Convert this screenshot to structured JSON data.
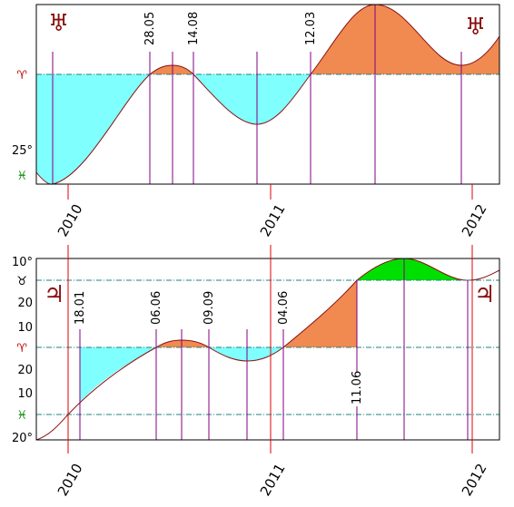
{
  "panels": [
    {
      "glyph": "♅",
      "axis_labels": [
        "♈",
        "25°",
        "♓"
      ],
      "dates": [
        "28.05",
        "14.08",
        "12.03"
      ],
      "years": [
        "2010",
        "2011",
        "2012"
      ]
    },
    {
      "glyph": "♃",
      "axis_labels": [
        "10°",
        "♉",
        "20",
        "10",
        "♈",
        "20",
        "10",
        "♓",
        "20°"
      ],
      "dates": [
        "18.01",
        "06.06",
        "09.09",
        "04.06",
        "11.06"
      ],
      "years": [
        "2010",
        "2011",
        "2012"
      ]
    }
  ]
}
